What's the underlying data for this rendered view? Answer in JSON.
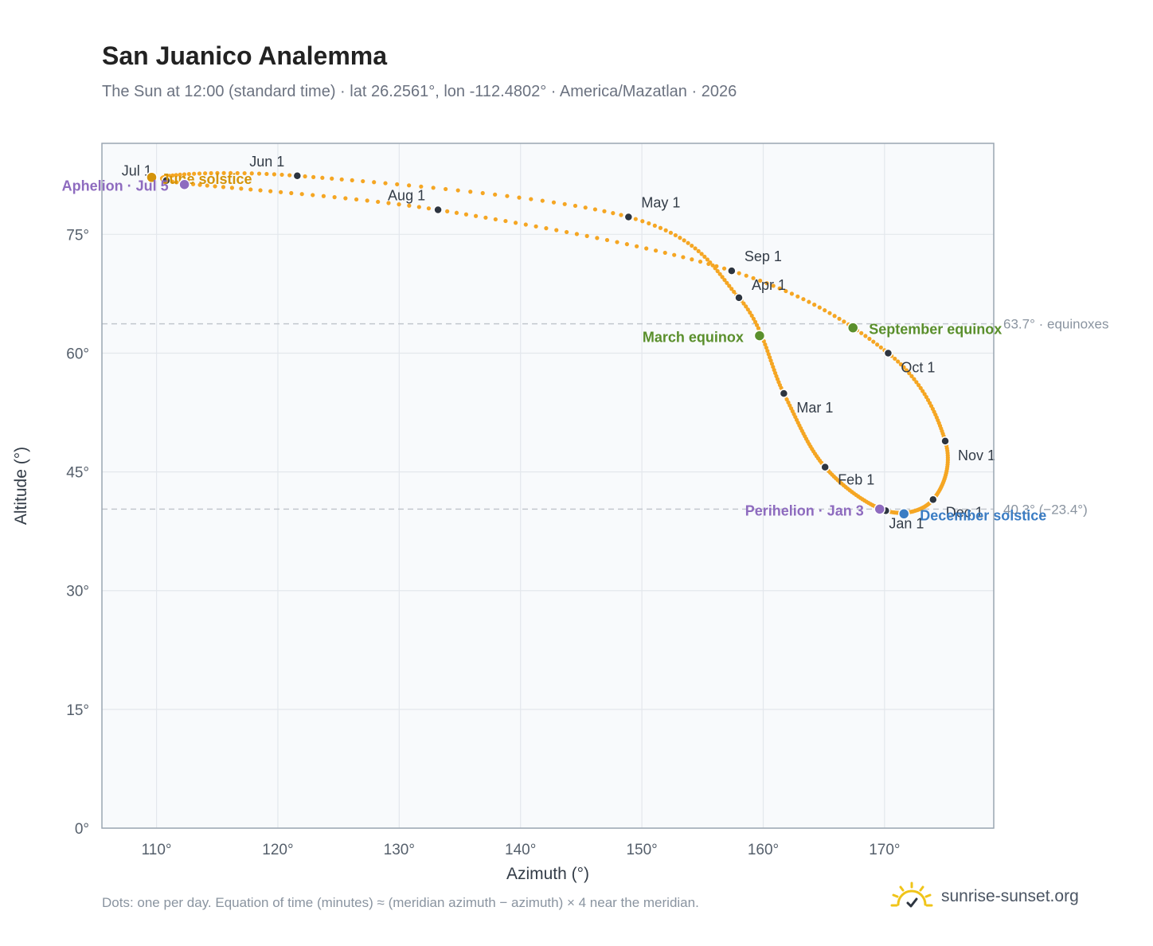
{
  "header": {
    "title": "San Juanico Analemma",
    "subtitle": "The Sun at 12:00 (standard time) · lat 26.2561°, lon -112.4802° · America/Mazatlan · 2026"
  },
  "footer": {
    "note": "Dots: one per day. Equation of time (minutes) ≈ (meridian azimuth − azimuth) × 4 near the meridian.",
    "brand": "sunrise-sunset.org"
  },
  "colors": {
    "curve": "#f5a623",
    "month_dot": "#2d3540",
    "equinox": "#5a8f2c",
    "solstice_june": "#d4940a",
    "solstice_december": "#3b7dc4",
    "apsis": "#8e6bbf",
    "reference_line": "#c2c8ce",
    "plot_bg": "#f8fafc",
    "axis_border": "#9aa6b2",
    "grid": "#e3e7ec"
  },
  "chart_data": {
    "type": "scatter",
    "xlabel": "Azimuth (°)",
    "ylabel": "Altitude (°)",
    "xlim": [
      105.5,
      179
    ],
    "ylim": [
      0,
      86.5
    ],
    "x_ticks": [
      110,
      120,
      130,
      140,
      150,
      160,
      170
    ],
    "x_tick_labels": [
      "110°",
      "120°",
      "130°",
      "140°",
      "150°",
      "160°",
      "170°"
    ],
    "y_ticks": [
      0,
      15,
      30,
      45,
      60,
      75
    ],
    "y_tick_labels": [
      "0°",
      "15°",
      "30°",
      "45°",
      "60°",
      "75°"
    ],
    "grid": true,
    "series": [
      {
        "points_per_day": 1,
        "month_points": [
          {
            "label": "Jan 1",
            "azimuth": 170.1,
            "altitude": 40.1
          },
          {
            "label": "Feb 1",
            "azimuth": 165.1,
            "altitude": 45.6
          },
          {
            "label": "Mar 1",
            "azimuth": 161.7,
            "altitude": 54.9
          },
          {
            "label": "Apr 1",
            "azimuth": 158.0,
            "altitude": 67.0
          },
          {
            "label": "May 1",
            "azimuth": 148.9,
            "altitude": 77.2
          },
          {
            "label": "Jun 1",
            "azimuth": 121.6,
            "altitude": 82.4
          },
          {
            "label": "Jul 1",
            "azimuth": 110.8,
            "altitude": 81.8
          },
          {
            "label": "Aug 1",
            "azimuth": 133.2,
            "altitude": 78.1
          },
          {
            "label": "Sep 1",
            "azimuth": 157.4,
            "altitude": 70.4
          },
          {
            "label": "Oct 1",
            "azimuth": 170.3,
            "altitude": 60.0
          },
          {
            "label": "Nov 1",
            "azimuth": 175.0,
            "altitude": 48.9
          },
          {
            "label": "Dec 1",
            "azimuth": 174.0,
            "altitude": 41.5
          }
        ]
      }
    ],
    "events": [
      {
        "label": "March equinox",
        "azimuth": 159.7,
        "altitude": 62.2,
        "color_key": "equinox"
      },
      {
        "label": "September equinox",
        "azimuth": 167.4,
        "altitude": 63.2,
        "color_key": "equinox"
      },
      {
        "label": "June solstice",
        "azimuth": 109.6,
        "altitude": 82.2,
        "color_key": "solstice_june"
      },
      {
        "label": "December solstice",
        "azimuth": 171.6,
        "altitude": 39.7,
        "color_key": "solstice_december"
      },
      {
        "label": "Aphelion · Jul 5",
        "azimuth": 112.3,
        "altitude": 81.3,
        "color_key": "apsis"
      },
      {
        "label": "Perihelion · Jan 3",
        "azimuth": 169.6,
        "altitude": 40.3,
        "color_key": "apsis"
      }
    ],
    "reference_lines": [
      {
        "altitude": 63.7,
        "label": "63.7° · equinoxes"
      },
      {
        "altitude": 40.3,
        "label": "40.3° (−23.4°)"
      }
    ]
  }
}
